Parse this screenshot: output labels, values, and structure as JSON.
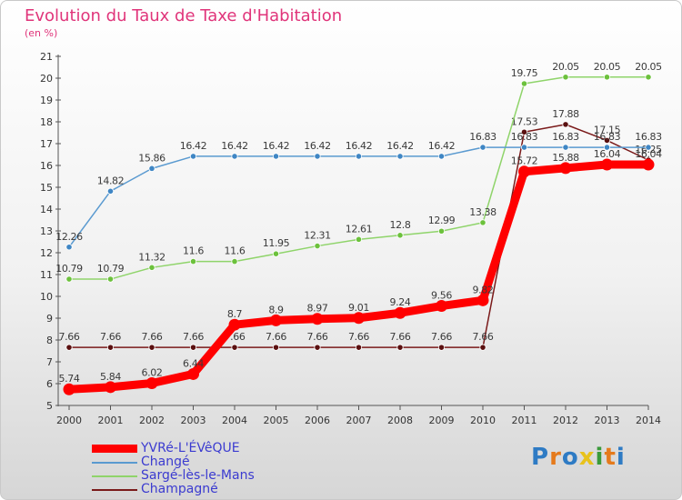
{
  "title": "Evolution du Taux de Taxe d'Habitation",
  "unit": "(en %)",
  "logo": {
    "text": "Proxiti",
    "colors": [
      "#2e7bc4",
      "#e57a1c",
      "#2e7bc4",
      "#e8c21c",
      "#3a9a3a",
      "#e57a1c",
      "#2e7bc4"
    ]
  },
  "chart_data": {
    "type": "line",
    "x": [
      "2000",
      "2001",
      "2002",
      "2003",
      "2004",
      "2005",
      "2006",
      "2007",
      "2008",
      "2009",
      "2010",
      "2011",
      "2012",
      "2013",
      "2014"
    ],
    "yticks": [
      "5",
      "6",
      "7",
      "8",
      "9",
      "10",
      "11",
      "12",
      "13",
      "14",
      "15",
      "16",
      "17",
      "18",
      "19",
      "20",
      "21"
    ],
    "ylim": [
      5,
      21
    ],
    "grid": false,
    "legend_position": "bottom-left",
    "series": [
      {
        "name": "Champagné",
        "color": "#7a1a1a",
        "marker_color": "#5a1010",
        "values": [
          7.66,
          7.66,
          7.66,
          7.66,
          7.66,
          7.66,
          7.66,
          7.66,
          7.66,
          7.66,
          7.66,
          17.53,
          17.88,
          17.15,
          16.25
        ],
        "labels": [
          "7.66",
          "7.66",
          "7.66",
          "7.66",
          "7.66",
          "7.66",
          "7.66",
          "7.66",
          "7.66",
          "7.66",
          "7.66",
          "17.53",
          "17.88",
          "17.15",
          "16.25"
        ]
      },
      {
        "name": "Sargé-lès-le-Mans",
        "color": "#8fd46a",
        "marker_color": "#6cc13c",
        "values": [
          10.79,
          10.79,
          11.32,
          11.6,
          11.6,
          11.95,
          12.31,
          12.61,
          12.8,
          12.99,
          13.38,
          19.75,
          20.05,
          20.05,
          20.05
        ],
        "labels": [
          "10.79",
          "10.79",
          "11.32",
          "11.6",
          "11.6",
          "11.95",
          "12.31",
          "12.61",
          "12.8",
          "12.99",
          "13.38",
          "19.75",
          "20.05",
          "20.05",
          "20.05"
        ]
      },
      {
        "name": "Changé",
        "color": "#5a9ad0",
        "marker_color": "#3f86c4",
        "values": [
          12.26,
          14.82,
          15.86,
          16.42,
          16.42,
          16.42,
          16.42,
          16.42,
          16.42,
          16.42,
          16.83,
          16.83,
          16.83,
          16.83,
          16.83
        ],
        "labels": [
          "12.26",
          "14.82",
          "15.86",
          "16.42",
          "16.42",
          "16.42",
          "16.42",
          "16.42",
          "16.42",
          "16.42",
          "16.83",
          "16.83",
          "16.83",
          "16.83",
          "16.83"
        ]
      },
      {
        "name": "YVRé-L'ÉVêQUE",
        "color": "#ff0000",
        "marker_color": "#ff0000",
        "values": [
          5.74,
          5.84,
          6.02,
          6.44,
          8.7,
          8.9,
          8.97,
          9.01,
          9.24,
          9.56,
          9.82,
          15.72,
          15.88,
          16.04,
          16.04
        ],
        "labels": [
          "5.74",
          "5.84",
          "6.02",
          "6.44",
          "8.7",
          "8.9",
          "8.97",
          "9.01",
          "9.24",
          "9.56",
          "9.82",
          "15.72",
          "15.88",
          "16.04",
          "16.04"
        ]
      }
    ]
  }
}
